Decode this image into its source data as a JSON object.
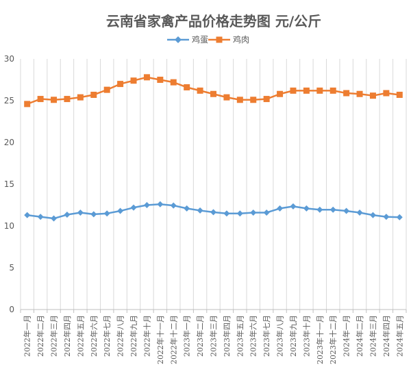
{
  "chart_data": {
    "type": "line",
    "title": "云南省家禽产品价格走势图    元/公斤",
    "xlabel": "",
    "ylabel": "",
    "ylim": [
      0,
      30
    ],
    "yticks": [
      "0",
      "5",
      "10",
      "15",
      "20",
      "25",
      "30"
    ],
    "legend_position": "top",
    "grid": "vertical",
    "categories": [
      "2022年一月",
      "2022年二月",
      "2022年三月",
      "2022年四月",
      "2022年五月",
      "2022年六月",
      "2022年七月",
      "2022年八月",
      "2022年九月",
      "2022年十月",
      "2022年十一月",
      "2022年十二月",
      "2023年一月",
      "2023年二月",
      "2023年三月",
      "2023年四月",
      "2023年五月",
      "2023年六月",
      "2023年七月",
      "2023年八月",
      "2023年九月",
      "2023年十月",
      "2023年十一月",
      "2023年十二月",
      "2024年一月",
      "2024年二月",
      "2024年三月",
      "2024年四月",
      "2024年五月"
    ],
    "series": [
      {
        "name": "鸡蛋",
        "color": "#5B9BD5",
        "marker": "diamond",
        "values": [
          11.3,
          11.1,
          10.9,
          11.35,
          11.6,
          11.4,
          11.5,
          11.8,
          12.2,
          12.5,
          12.6,
          12.45,
          12.1,
          11.85,
          11.65,
          11.5,
          11.5,
          11.6,
          11.6,
          12.1,
          12.35,
          12.1,
          11.95,
          11.95,
          11.8,
          11.6,
          11.3,
          11.1,
          11.05
        ]
      },
      {
        "name": "鸡肉",
        "color": "#ED7D31",
        "marker": "square",
        "values": [
          24.6,
          25.2,
          25.1,
          25.2,
          25.4,
          25.7,
          26.3,
          27.0,
          27.4,
          27.8,
          27.5,
          27.2,
          26.6,
          26.2,
          25.8,
          25.4,
          25.1,
          25.1,
          25.2,
          25.8,
          26.2,
          26.2,
          26.2,
          26.2,
          25.9,
          25.8,
          25.6,
          25.9,
          25.7
        ]
      }
    ]
  }
}
